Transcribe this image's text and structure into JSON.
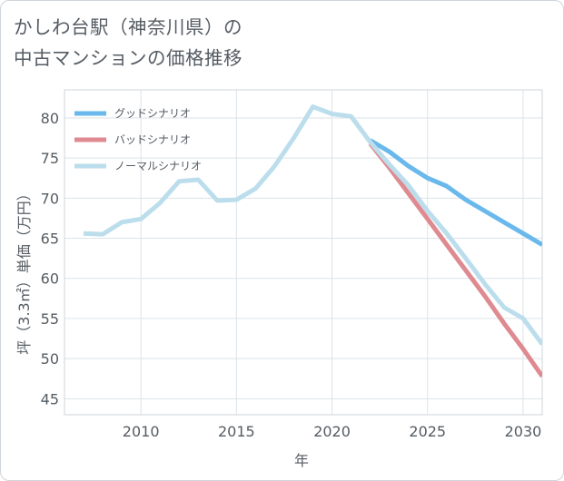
{
  "title": {
    "line1": "かしわ台駅（神奈川県）の",
    "line2": "中古マンションの価格推移"
  },
  "chart_data": {
    "type": "line",
    "title": "かしわ台駅（神奈川県）の中古マンションの価格推移",
    "xlabel": "年",
    "ylabel": "坪（3.3㎡）単価（万円）",
    "xlim": [
      2006,
      2031
    ],
    "ylim": [
      43,
      83.5
    ],
    "xticks": [
      2010,
      2015,
      2020,
      2025,
      2030
    ],
    "yticks": [
      45,
      50,
      55,
      60,
      65,
      70,
      75,
      80
    ],
    "grid": true,
    "legend_position": "top-left",
    "series": [
      {
        "name": "グッドシナリオ",
        "color": "#6ab8ec",
        "x": [
          2022,
          2023,
          2024,
          2025,
          2026,
          2027,
          2028,
          2029,
          2030,
          2031
        ],
        "values": [
          77.2,
          75.8,
          74.0,
          72.5,
          71.5,
          69.8,
          68.4,
          67.0,
          65.6,
          64.2
        ]
      },
      {
        "name": "バッドシナリオ",
        "color": "#de8a90",
        "x": [
          2022,
          2023,
          2024,
          2025,
          2026,
          2027,
          2028,
          2029,
          2030,
          2031
        ],
        "values": [
          76.8,
          73.8,
          70.6,
          67.4,
          64.2,
          61.0,
          57.8,
          54.4,
          51.2,
          47.8
        ]
      },
      {
        "name": "ノーマルシナリオ",
        "color": "#bcdeec",
        "x": [
          2007,
          2008,
          2009,
          2010,
          2011,
          2012,
          2013,
          2014,
          2015,
          2016,
          2017,
          2018,
          2019,
          2020,
          2021,
          2022,
          2023,
          2024,
          2025,
          2026,
          2027,
          2028,
          2029,
          2030,
          2031
        ],
        "values": [
          65.6,
          65.5,
          67.0,
          67.4,
          69.4,
          72.1,
          72.3,
          69.7,
          69.8,
          71.2,
          74.0,
          77.5,
          81.4,
          80.5,
          80.2,
          77.0,
          74.2,
          71.6,
          68.4,
          65.6,
          62.5,
          59.3,
          56.4,
          55.0,
          51.8
        ]
      }
    ]
  }
}
